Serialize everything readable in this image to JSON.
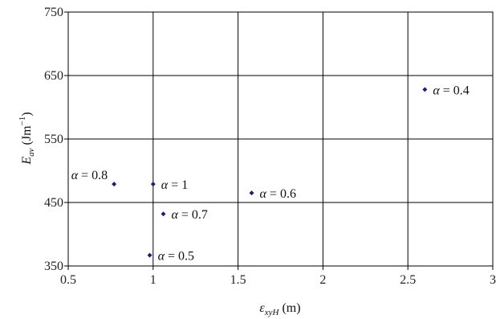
{
  "chart_data": {
    "type": "scatter",
    "xlabel": {
      "main": "ε",
      "sub": "xyH",
      "unit": " (m)"
    },
    "ylabel": {
      "main": "E",
      "sub": "av",
      "unit_pre": " (Jm",
      "unit_sup": "−1",
      "unit_post": ")"
    },
    "xlim": [
      0.5,
      3
    ],
    "ylim": [
      350,
      750
    ],
    "x_ticks": [
      0.5,
      1,
      1.5,
      2,
      2.5,
      3
    ],
    "x_tick_labels": [
      "0.5",
      "1",
      "1.5",
      "2",
      "2.5",
      "3"
    ],
    "y_ticks": [
      350,
      450,
      550,
      650,
      750
    ],
    "y_tick_labels": [
      "350",
      "450",
      "550",
      "650",
      "750"
    ],
    "grid": true,
    "marker_color": "#1f1f6e",
    "points": [
      {
        "x": 2.6,
        "y": 628,
        "label": "α = 0.4"
      },
      {
        "x": 0.98,
        "y": 367,
        "label": "α = 0.5"
      },
      {
        "x": 1.58,
        "y": 465,
        "label": "α = 0.6"
      },
      {
        "x": 1.06,
        "y": 432,
        "label": "α = 0.7"
      },
      {
        "x": 0.77,
        "y": 479,
        "label": "α = 0.8"
      },
      {
        "x": 1.0,
        "y": 479,
        "label": "α = 1"
      }
    ]
  }
}
